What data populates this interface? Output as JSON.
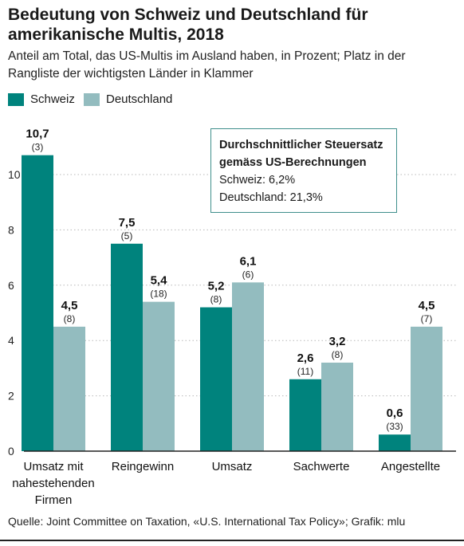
{
  "title": "Bedeutung von Schweiz und Deutschland für amerikanische Multis, 2018",
  "subtitle": "Anteil am Total, das US-Multis im Ausland haben, in Prozent; Platz in der Rangliste der wichtigsten Länder in Klammer",
  "colors": {
    "schweiz": "#00837d",
    "deutschland": "#93bcbf",
    "grid": "#b8b8b8",
    "axis": "#222222"
  },
  "annotation": {
    "heading_line1": "Durchschnittlicher Steuersatz",
    "heading_line2": "gemäss US-Berechnungen",
    "line1": "Schweiz: 6,2%",
    "line2": "Deutschland: 21,3%"
  },
  "source": "Quelle: Joint Committee on Taxation, «U.S. International Tax Policy»; Grafik: mlu",
  "chart_data": {
    "type": "bar",
    "categories": [
      "Umsatz mit nahestehenden Firmen",
      "Reingewinn",
      "Umsatz",
      "Sachwerte",
      "Angestellte"
    ],
    "category_lines": [
      [
        "Umsatz mit",
        "nahestehenden",
        "Firmen"
      ],
      [
        "Reingewinn"
      ],
      [
        "Umsatz"
      ],
      [
        "Sachwerte"
      ],
      [
        "Angestellte"
      ]
    ],
    "series": [
      {
        "name": "Schweiz",
        "values": [
          10.7,
          7.5,
          5.2,
          2.6,
          0.6
        ],
        "labels": [
          "10,7",
          "7,5",
          "5,2",
          "2,6",
          "0,6"
        ],
        "ranks": [
          "(3)",
          "(5)",
          "(8)",
          "(11)",
          "(33)"
        ]
      },
      {
        "name": "Deutschland",
        "values": [
          4.5,
          5.4,
          6.1,
          3.2,
          4.5
        ],
        "labels": [
          "4,5",
          "5,4",
          "6,1",
          "3,2",
          "4,5"
        ],
        "ranks": [
          "(8)",
          "(18)",
          "(6)",
          "(8)",
          "(7)"
        ]
      }
    ],
    "yticks": [
      0,
      2,
      4,
      6,
      8,
      10
    ],
    "ylim": [
      0,
      11.5
    ],
    "grid": true,
    "legend": "top-left"
  }
}
